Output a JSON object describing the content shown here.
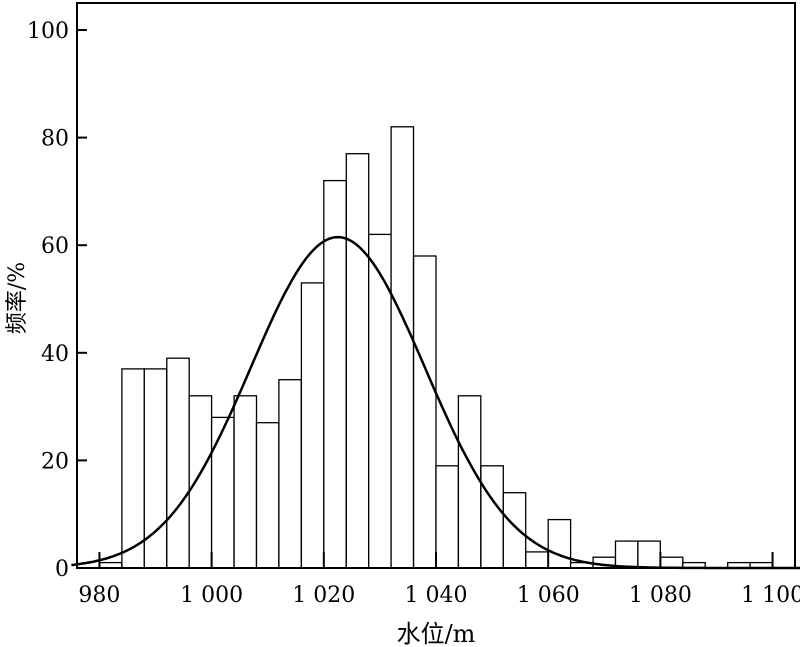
{
  "chart_data": {
    "type": "bar",
    "title": "",
    "xlabel": "水位/m",
    "ylabel": "频率/%",
    "xlim": [
      975,
      1105
    ],
    "ylim": [
      0,
      100
    ],
    "grid": false,
    "x_ticks": [
      980,
      1000,
      1020,
      1040,
      1060,
      1080,
      1100
    ],
    "x_tick_labels": [
      "980",
      "1 000",
      "1 020",
      "1 040",
      "1 060",
      "1 080",
      "1 100"
    ],
    "y_ticks": [
      0,
      20,
      40,
      60,
      80,
      100
    ],
    "y_tick_labels": [
      "0",
      "20",
      "40",
      "60",
      "80",
      "100"
    ],
    "bin_edges": [
      980,
      984,
      988,
      992,
      996,
      1000,
      1004,
      1008,
      1012,
      1016,
      1020,
      1024,
      1028,
      1032,
      1036,
      1040,
      1044,
      1048,
      1052,
      1056,
      1060,
      1064,
      1068,
      1072,
      1076,
      1080,
      1084,
      1088,
      1092,
      1096,
      1100
    ],
    "values": [
      1,
      37,
      37,
      39,
      32,
      28,
      32,
      27,
      35,
      53,
      72,
      77,
      62,
      82,
      58,
      19,
      32,
      19,
      14,
      3,
      9,
      1,
      2,
      5,
      5,
      2,
      1,
      0,
      1,
      1
    ],
    "fit_curve": {
      "type": "normal",
      "mean": 1022.5,
      "std": 15.5,
      "peak": 61.5
    }
  }
}
